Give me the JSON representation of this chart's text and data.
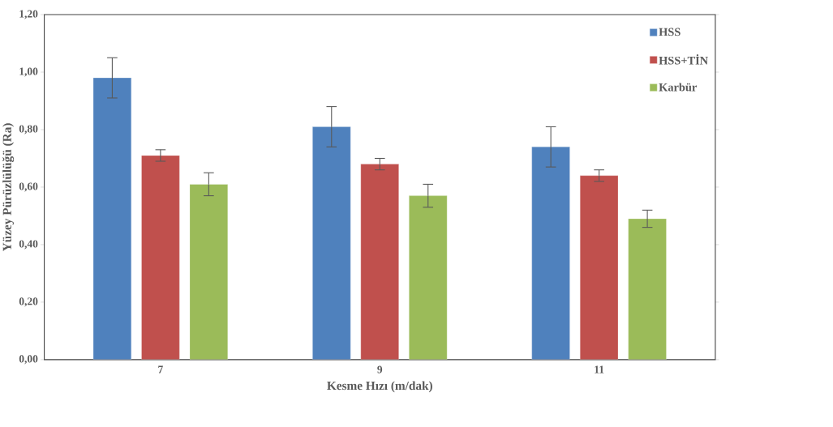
{
  "chart_data": {
    "type": "bar",
    "xlabel": "Kesme Hızı (m/dak)",
    "ylabel": "Yüzey Pürüzlülüğü (Ra)",
    "categories": [
      "7",
      "9",
      "11"
    ],
    "series": [
      {
        "name": "HSS",
        "color": "#4f81bd",
        "values": [
          0.98,
          0.81,
          0.74
        ],
        "errors": [
          0.07,
          0.07,
          0.07
        ]
      },
      {
        "name": "HSS+TİN",
        "color": "#c0504d",
        "values": [
          0.71,
          0.68,
          0.64
        ],
        "errors": [
          0.02,
          0.02,
          0.02
        ]
      },
      {
        "name": "Karbür",
        "color": "#9bbb59",
        "values": [
          0.61,
          0.57,
          0.49
        ],
        "errors": [
          0.04,
          0.04,
          0.03
        ]
      }
    ],
    "ylim": [
      0,
      1.2
    ],
    "yticks": [
      {
        "value": 0,
        "label": "0,00"
      },
      {
        "value": 0.2,
        "label": "0,20"
      },
      {
        "value": 0.4,
        "label": "0,40"
      },
      {
        "value": 0.6,
        "label": "0,60"
      },
      {
        "value": 0.8,
        "label": "0,80"
      },
      {
        "value": 1.0,
        "label": "1,00"
      },
      {
        "value": 1.2,
        "label": "1,20"
      }
    ],
    "grid": false,
    "legend": "top right"
  }
}
